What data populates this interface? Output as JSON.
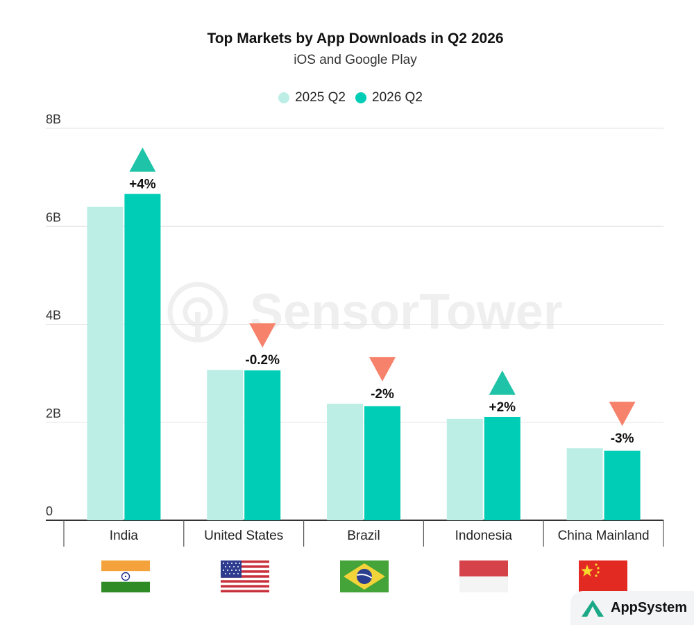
{
  "title": "Top Markets by App Downloads in Q2 2026",
  "subtitle": "iOS and Google Play",
  "legend": [
    {
      "label": "2025 Q2",
      "color": "#bdeee6"
    },
    {
      "label": "2026 Q2",
      "color": "#00cdb6"
    }
  ],
  "watermark": "SensorTower",
  "brand": {
    "name": "AppSystem"
  },
  "colors": {
    "up": "#1fc4a8",
    "down": "#f7826b",
    "gridline": "#e2e2e2"
  },
  "chart_data": {
    "type": "bar",
    "title": "Top Markets by App Downloads in Q2 2026",
    "subtitle": "iOS and Google Play",
    "xlabel": "",
    "ylabel": "",
    "ylim": [
      0,
      8
    ],
    "yticks": [
      {
        "value": 0,
        "label": "0"
      },
      {
        "value": 2,
        "label": "2B"
      },
      {
        "value": 4,
        "label": "4B"
      },
      {
        "value": 6,
        "label": "6B"
      },
      {
        "value": 8,
        "label": "8B"
      }
    ],
    "categories": [
      "India",
      "United States",
      "Brazil",
      "Indonesia",
      "China Mainland"
    ],
    "series": [
      {
        "name": "2025 Q2",
        "color": "#bdeee6",
        "values": [
          6.4,
          3.07,
          2.38,
          2.07,
          1.47
        ]
      },
      {
        "name": "2026 Q2",
        "color": "#00cdb6",
        "values": [
          6.66,
          3.06,
          2.33,
          2.11,
          1.42
        ]
      }
    ],
    "annotations": [
      {
        "label": "+4%",
        "direction": "up"
      },
      {
        "label": "-0.2%",
        "direction": "down"
      },
      {
        "label": "-2%",
        "direction": "down"
      },
      {
        "label": "+2%",
        "direction": "up"
      },
      {
        "label": "-3%",
        "direction": "down"
      }
    ],
    "flags": [
      "india-flag-icon",
      "us-flag-icon",
      "brazil-flag-icon",
      "indonesia-flag-icon",
      "china-flag-icon"
    ],
    "grid": true,
    "legend_position": "top-center"
  }
}
